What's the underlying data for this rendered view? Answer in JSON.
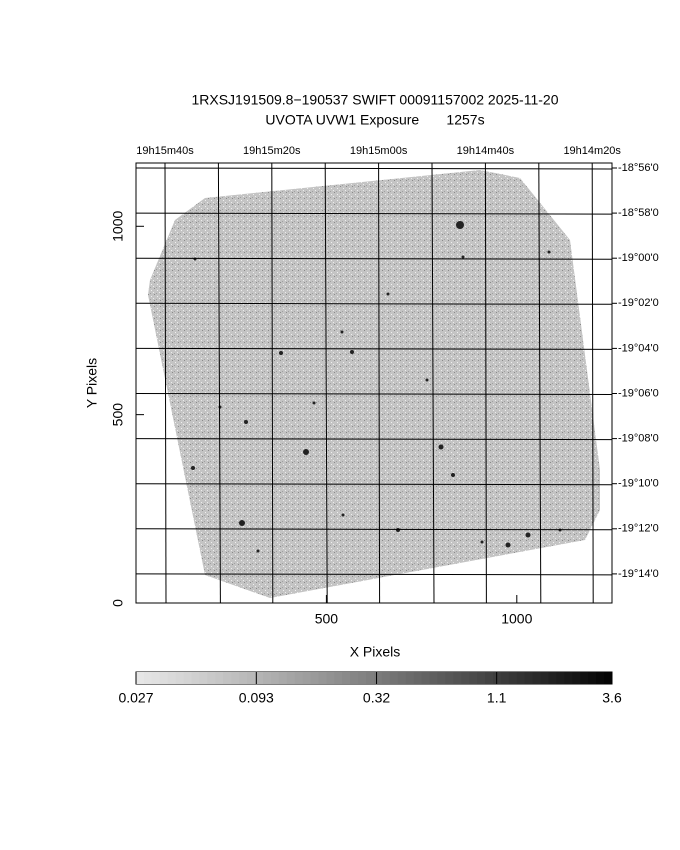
{
  "chart_data": {
    "type": "image",
    "title": "1RXSJ191509.8−190537 SWIFT 00091157002 2025-11-20",
    "subtitle": "UVOTA UVW1 Exposure       1257s",
    "x_label": "X Pixels",
    "y_label": "Y Pixels",
    "xlim": [
      0,
      1250
    ],
    "ylim": [
      0,
      1168
    ],
    "xticks": [
      500,
      1000
    ],
    "yticks": [
      0,
      500,
      1000
    ],
    "ra_labels": [
      "19h15m40s",
      "19h15m20s",
      "19h15m00s",
      "19h14m40s",
      "19h14m20s"
    ],
    "dec_labels": [
      "-18°56'0",
      "-18°58'0",
      "-19°00'0",
      "-19°02'0",
      "-19°04'0",
      "-19°06'0",
      "-19°08'0",
      "-19°10'0",
      "-19°12'0",
      "-19°14'0"
    ],
    "colorbar": {
      "lim": [
        0.027,
        3.6
      ],
      "ticks": [
        0.027,
        0.093,
        0.32,
        1.1,
        3.6
      ],
      "log": true
    }
  }
}
